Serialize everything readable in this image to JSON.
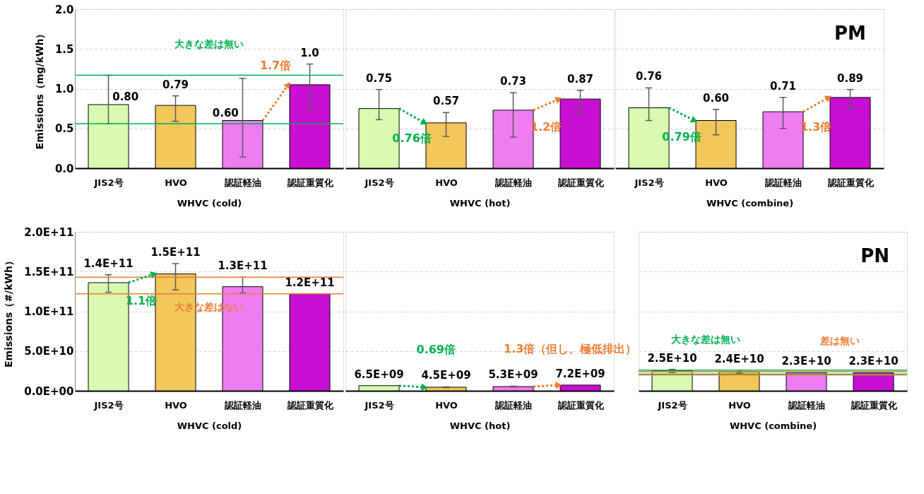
{
  "chart_data": [
    {
      "type": "bar",
      "categories": [
        "JIS2号",
        "HVO",
        "認証軽油",
        "認証重質化"
      ],
      "xlabel": "WHVC (cold)",
      "ylabel": "Emissions（mg/kWh）",
      "values": [
        0.8,
        0.79,
        0.6,
        1.05
      ],
      "colors": [
        "#d9fab0",
        "#f2c75c",
        "#ef7df2",
        "#c80fd2"
      ],
      "errors": [
        [
          0.56,
          1.17
        ],
        [
          0.59,
          0.91
        ],
        [
          0.14,
          1.13
        ],
        [
          0.73,
          1.31
        ]
      ],
      "value_labels": [
        "0.80",
        "0.79",
        "0.60",
        "1.0"
      ],
      "ylim": [
        0,
        2.0
      ],
      "yticks": [
        {
          "value": 0,
          "label": "0.0"
        },
        {
          "value": 0.5,
          "label": "0.5"
        },
        {
          "value": 1,
          "label": "1.0"
        },
        {
          "value": 1.5,
          "label": "1.5"
        },
        {
          "value": 2,
          "label": "2.0"
        }
      ],
      "grid": "y",
      "ref_lines": [
        {
          "axis": "y",
          "value": 1.17,
          "label": "大きな差は無い",
          "color": "#00b050"
        },
        {
          "axis": "y",
          "value": 0.56,
          "color": "#00b050"
        }
      ],
      "annotations": [
        {
          "text": "1.7倍",
          "x": "認証重質化",
          "y": 1.05
        }
      ]
    },
    {
      "type": "bar",
      "categories": [
        "JIS2号",
        "HVO",
        "認証軽油",
        "認証重質化"
      ],
      "xlabel": "WHVC (hot)",
      "values": [
        0.75,
        0.57,
        0.73,
        0.87
      ],
      "colors": [
        "#d9fab0",
        "#f2c75c",
        "#ef7df2",
        "#c80fd2"
      ],
      "errors": [
        [
          0.61,
          0.99
        ],
        [
          0.4,
          0.7
        ],
        [
          0.39,
          0.95
        ],
        [
          0.69,
          0.98
        ]
      ],
      "value_labels": [
        "0.75",
        "0.57",
        "0.73",
        "0.87"
      ],
      "ylim": [
        0,
        2.0
      ],
      "yticks": [
        {
          "value": 0,
          "label": "0.0"
        },
        {
          "value": 0.5,
          "label": "0.5"
        },
        {
          "value": 1,
          "label": "1.0"
        },
        {
          "value": 1.5,
          "label": "1.5"
        },
        {
          "value": 2,
          "label": "2.0"
        }
      ],
      "grid": "y",
      "tick_labels": "x",
      "annotations": [
        {
          "text": "0.76倍",
          "x": "HVO",
          "y": 0.57
        },
        {
          "text": "1.2倍",
          "x": "認証重質化",
          "y": 0.87
        }
      ]
    },
    {
      "type": "bar",
      "categories": [
        "JIS2号",
        "HVO",
        "認証軽油",
        "認証重質化"
      ],
      "xlabel": "WHVC (combine)",
      "values": [
        0.76,
        0.6,
        0.71,
        0.89
      ],
      "colors": [
        "#d9fab0",
        "#f2c75c",
        "#ef7df2",
        "#c80fd2"
      ],
      "errors": [
        [
          0.6,
          1.01
        ],
        [
          0.42,
          0.74
        ],
        [
          0.5,
          0.89
        ],
        [
          0.75,
          0.99
        ]
      ],
      "value_labels": [
        "0.76",
        "0.60",
        "0.71",
        "0.89"
      ],
      "ylim": [
        0,
        2.0
      ],
      "yticks": [
        {
          "value": 0,
          "label": "0.0"
        },
        {
          "value": 0.5,
          "label": "0.5"
        },
        {
          "value": 1,
          "label": "1.0"
        },
        {
          "value": 1.5,
          "label": "1.5"
        },
        {
          "value": 2,
          "label": "2.0"
        }
      ],
      "grid": "y",
      "tick_labels": "x",
      "annotations": [
        "PM",
        {
          "text": "0.79倍",
          "x": "HVO",
          "y": 0.6
        },
        {
          "text": "1.3倍",
          "x": "認証重質化",
          "y": 0.89
        }
      ]
    },
    {
      "type": "bar",
      "categories": [
        "JIS2号",
        "HVO",
        "認証軽油",
        "認証重質化"
      ],
      "xlabel": "WHVC (cold)",
      "ylabel": "Emissions（#/kWh）",
      "values": [
        136000000000.0,
        147000000000.0,
        131000000000.0,
        122000000000.0
      ],
      "colors": [
        "#d9fab0",
        "#f2c75c",
        "#ef7df2",
        "#c80fd2"
      ],
      "errors": [
        [
          124000000000.0,
          146000000000.0
        ],
        [
          127000000000.0,
          160000000000.0
        ],
        [
          123000000000.0,
          143000000000.0
        ],
        null
      ],
      "value_labels": [
        "1.4E+11",
        "1.5E+11",
        "1.3E+11",
        "1.2E+11"
      ],
      "ylim": [
        0,
        200000000000.0
      ],
      "yticks": [
        {
          "value": 0,
          "label": "0.0E+00"
        },
        {
          "value": 50000000000.0,
          "label": "5.0E+10"
        },
        {
          "value": 100000000000.0,
          "label": "1.0E+11"
        },
        {
          "value": 150000000000.0,
          "label": "1.5E+11"
        },
        {
          "value": 200000000000.0,
          "label": "2.0E+11"
        }
      ],
      "grid": "y",
      "ref_lines": [
        {
          "axis": "y",
          "value": 143000000000.0,
          "color": "#ed7d31"
        },
        {
          "axis": "y",
          "value": 122000000000.0,
          "label": "大きな差はない",
          "color": "#ed7d31"
        }
      ],
      "annotations": [
        {
          "text": "1.1倍",
          "x": "HVO",
          "y": 147000000000.0
        }
      ]
    },
    {
      "type": "bar",
      "categories": [
        "JIS2号",
        "HVO",
        "認証軽油",
        "認証重質化"
      ],
      "xlabel": "WHVC (hot)",
      "values": [
        6500000000.0,
        4500000000.0,
        5300000000.0,
        7200000000.0
      ],
      "colors": [
        "#d9fab0",
        "#f2c75c",
        "#ef7df2",
        "#c80fd2"
      ],
      "errors": [
        null,
        [
          4000000000.0,
          5000000000.0
        ],
        [
          4800000000.0,
          5800000000.0
        ],
        null
      ],
      "value_labels": [
        "6.5E+09",
        "4.5E+09",
        "5.3E+09",
        "7.2E+09"
      ],
      "ylim": [
        0,
        200000000000.0
      ],
      "yticks": [
        {
          "value": 0,
          "label": "0.0E+00"
        },
        {
          "value": 50000000000.0,
          "label": "5.0E+10"
        },
        {
          "value": 100000000000.0,
          "label": "1.0E+11"
        },
        {
          "value": 150000000000.0,
          "label": "1.5E+11"
        },
        {
          "value": 200000000000.0,
          "label": "2.0E+11"
        }
      ],
      "grid": "y",
      "tick_labels": "x",
      "annotations": [
        {
          "text": "0.69倍",
          "x": "HVO",
          "y": 4500000000.0
        },
        {
          "text": "1.3倍（但し、極低排出）",
          "x": "認証重質化",
          "y": 7200000000.0
        }
      ]
    },
    {
      "type": "bar",
      "categories": [
        "JIS2号",
        "HVO",
        "認証軽油",
        "認証重質化"
      ],
      "xlabel": "WHVC (combine)",
      "values": [
        25000000000.0,
        24000000000.0,
        23000000000.0,
        23000000000.0
      ],
      "colors": [
        "#d9fab0",
        "#f2c75c",
        "#ef7df2",
        "#c80fd2"
      ],
      "errors": [
        [
          23000000000.0,
          27000000000.0
        ],
        [
          22000000000.0,
          26000000000.0
        ],
        null,
        null
      ],
      "value_labels": [
        "2.5E+10",
        "2.4E+10",
        "2.3E+10",
        "2.3E+10"
      ],
      "ylim": [
        0,
        200000000000.0
      ],
      "yticks": [
        {
          "value": 0,
          "label": "0.0E+00"
        },
        {
          "value": 50000000000.0,
          "label": "5.0E+10"
        },
        {
          "value": 100000000000.0,
          "label": "1.0E+11"
        },
        {
          "value": 150000000000.0,
          "label": "1.5E+11"
        },
        {
          "value": 200000000000.0,
          "label": "2.0E+11"
        }
      ],
      "grid": "y",
      "tick_labels": "x",
      "ref_lines": [
        {
          "axis": "y",
          "value": 26000000000.0,
          "label": "大きな差は無い",
          "color": "#00b050"
        },
        {
          "axis": "y",
          "value": 21000000000.0,
          "color": "#00b050"
        },
        {
          "axis": "y",
          "value": 24000000000.0,
          "label": "差は無い",
          "color": "#ed7d31"
        },
        {
          "axis": "y",
          "value": 20000000000.0,
          "color": "#ed7d31"
        }
      ],
      "annotations": [
        "PN"
      ]
    }
  ]
}
